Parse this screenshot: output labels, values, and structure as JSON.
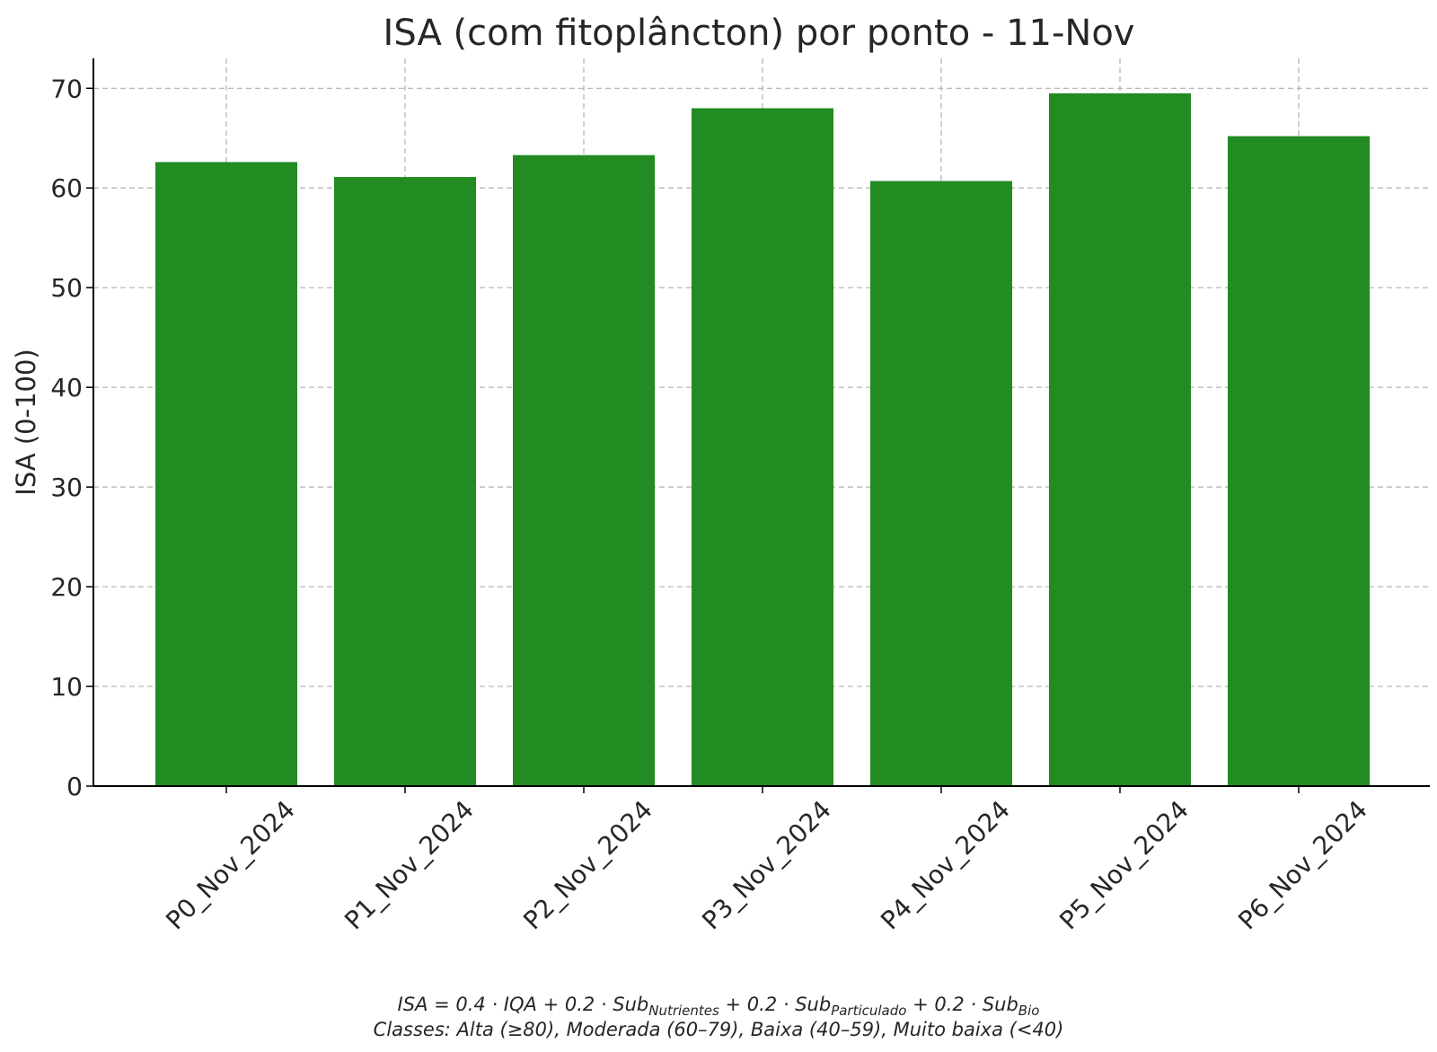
{
  "chart_data": {
    "type": "bar",
    "title": "ISA (com fitoplâncton) por ponto - 11-Nov",
    "xlabel": "",
    "ylabel": "ISA (0-100)",
    "categories": [
      "P0_Nov_2024",
      "P1_Nov_2024",
      "P2_Nov_2024",
      "P3_Nov_2024",
      "P4_Nov_2024",
      "P5_Nov_2024",
      "P6_Nov_2024"
    ],
    "values": [
      62.6,
      61.1,
      63.3,
      68.0,
      60.7,
      69.5,
      65.2
    ],
    "ylim": [
      0,
      73
    ],
    "yticks": [
      0,
      10,
      20,
      30,
      40,
      50,
      60,
      70
    ],
    "grid": true,
    "legend": "none",
    "bar_color": "#228B22",
    "footnote": {
      "formula_parts": [
        {
          "text": "ISA = 0.4 · IQA + 0.2 · Sub"
        },
        {
          "sub": "Nutrientes"
        },
        {
          "text": " + 0.2 · Sub"
        },
        {
          "sub": "Particulado"
        },
        {
          "text": " + 0.2 · Sub"
        },
        {
          "sub": "Bio"
        }
      ],
      "classes": "Classes: Alta (≥80), Moderada (60–79), Baixa (40–59), Muito baixa (<40)"
    }
  }
}
